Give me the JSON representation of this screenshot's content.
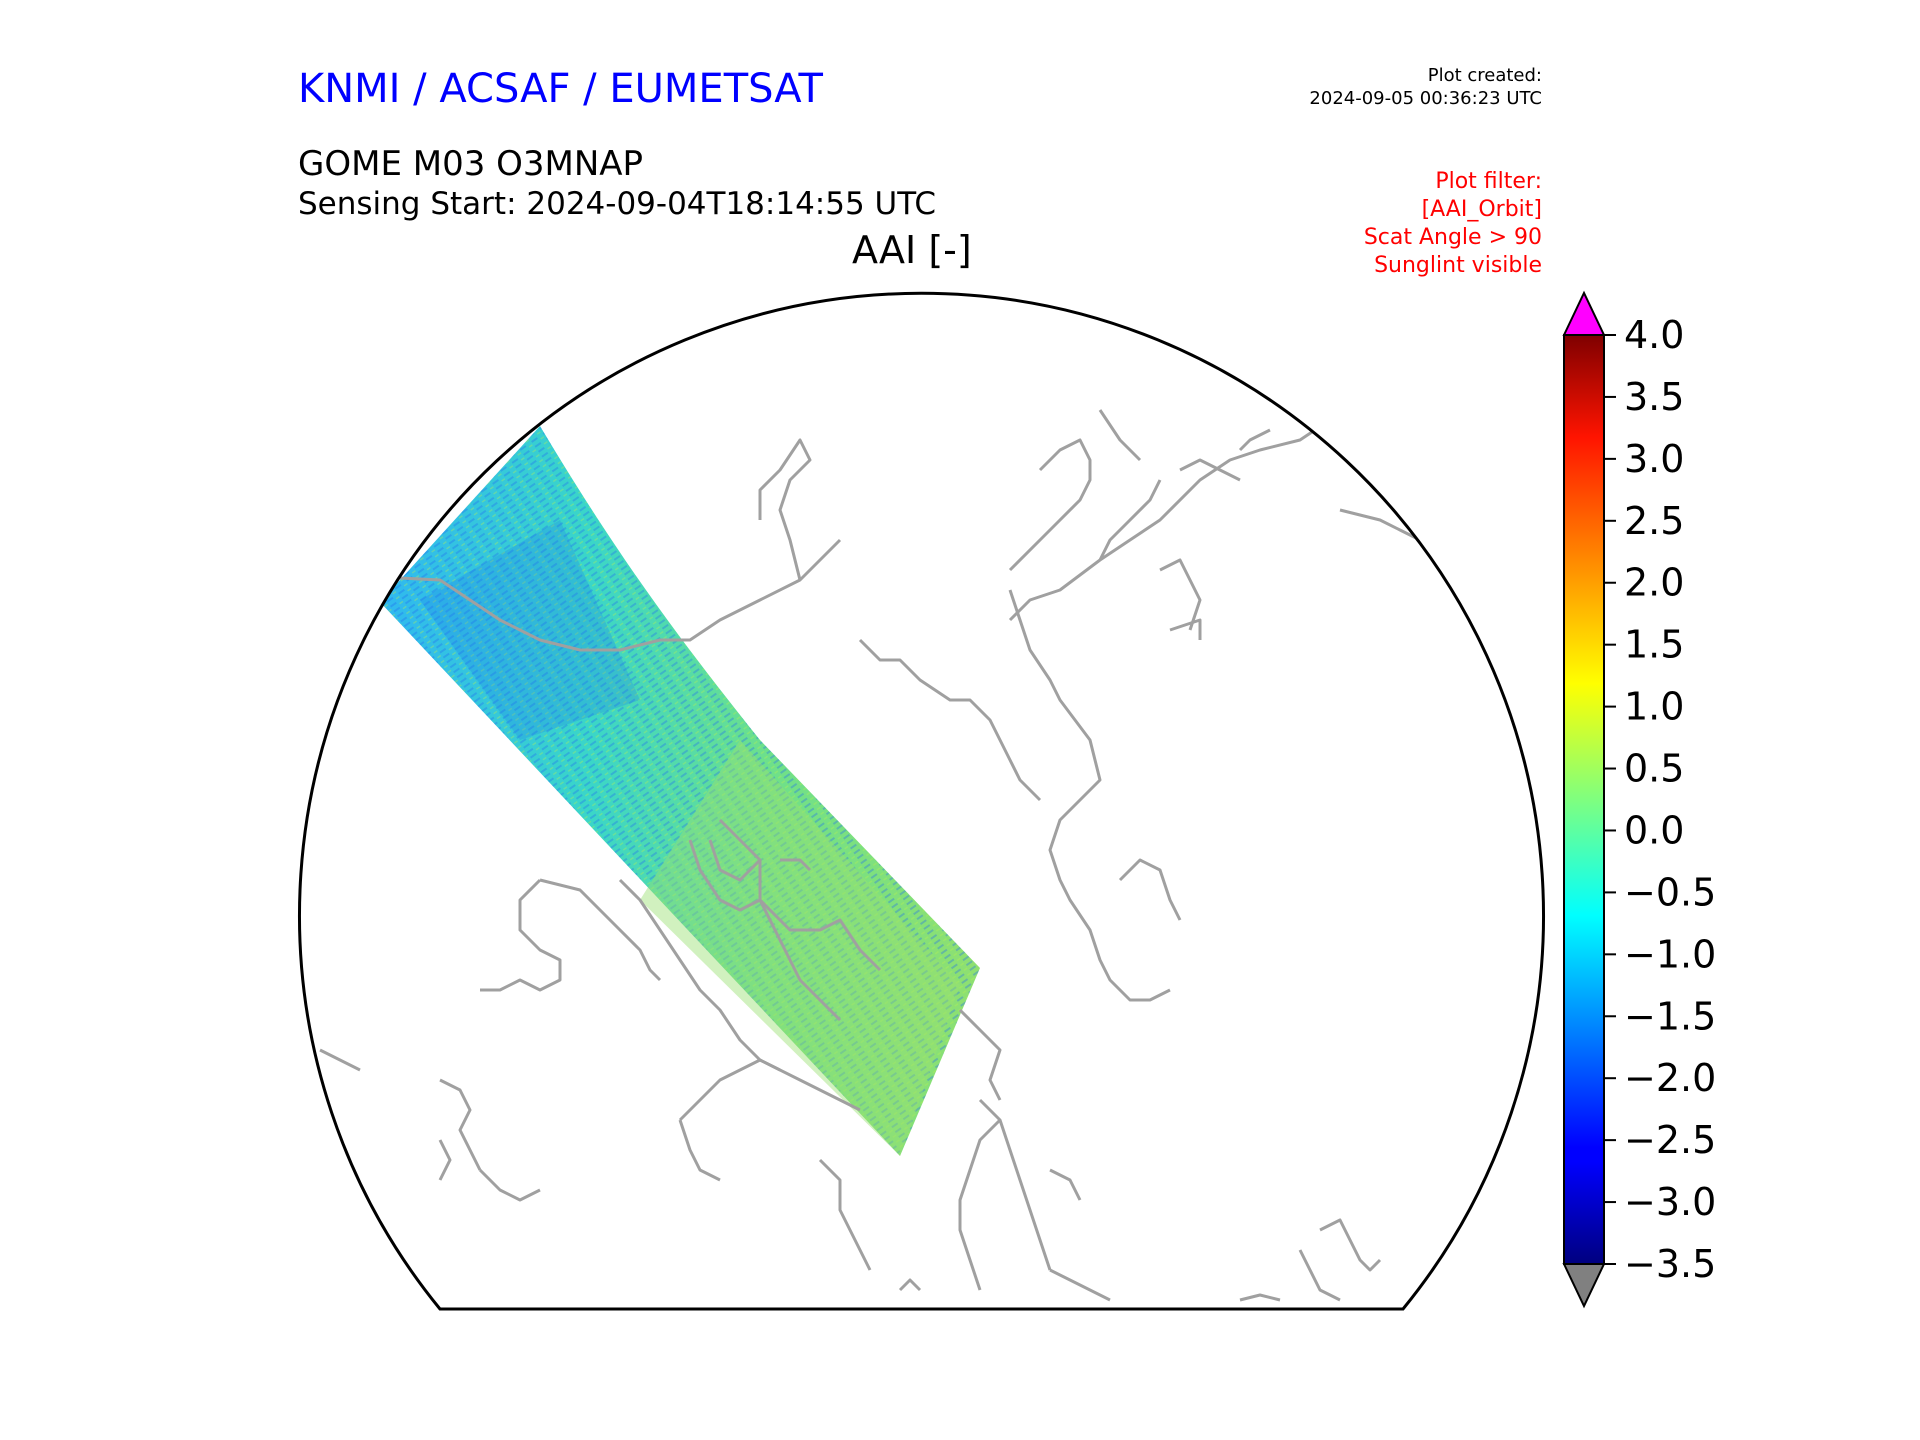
{
  "header": {
    "organization": "KNMI / ACSAF / EUMETSAT",
    "plot_created_label": "Plot created:",
    "plot_created_time": "2024-09-05 00:36:23 UTC",
    "product_title": "GOME M03 O3MNAP",
    "sensing_start": "Sensing Start: 2024-09-04T18:14:55 UTC",
    "variable_label": "AAI [-]"
  },
  "plot_filter": {
    "title": "Plot filter:",
    "lines": [
      "[AAI_Orbit]",
      "Scat Angle > 90",
      "Sunglint visible"
    ]
  },
  "colorbar": {
    "min": -3.5,
    "max": 4.0,
    "ticks": [
      "4.0",
      "3.5",
      "3.0",
      "2.5",
      "2.0",
      "1.5",
      "1.0",
      "0.5",
      "0.0",
      "−0.5",
      "−1.0",
      "−1.5",
      "−2.0",
      "−2.5",
      "−3.0",
      "−3.5"
    ],
    "extend_max_color": "#ff00ff",
    "extend_min_color": "#808080",
    "colormap": "jet"
  },
  "map": {
    "projection": "north-polar-stereographic",
    "coastline_color": "#a0a0a0",
    "swath_direction": "northwest-to-pole"
  }
}
